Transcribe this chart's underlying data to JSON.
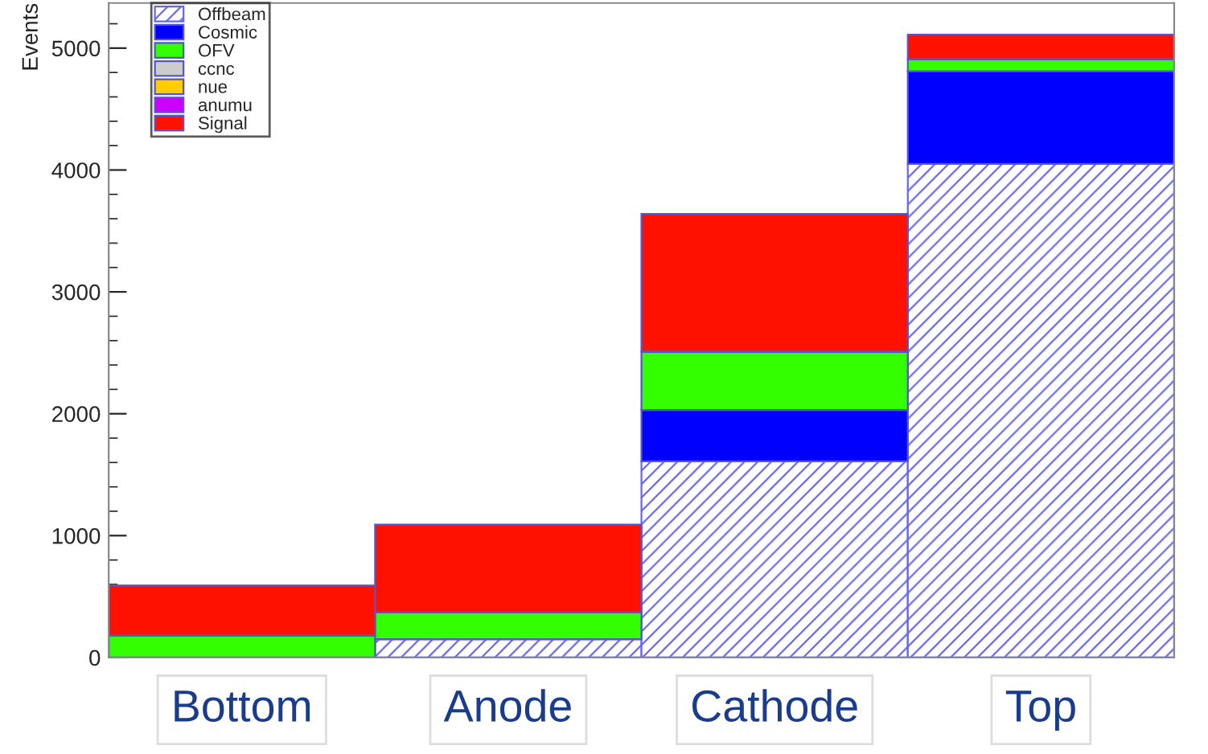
{
  "chart_data": {
    "type": "bar",
    "stacked": true,
    "ylabel": "Events",
    "categories": [
      "Bottom",
      "Anode",
      "Cathode",
      "Top"
    ],
    "series": [
      {
        "name": "Offbeam",
        "color": "#6666ee",
        "values": [
          0,
          150,
          1610,
          4050
        ]
      },
      {
        "name": "Cosmic",
        "color": "#0000ff",
        "values": [
          0,
          0,
          420,
          760
        ]
      },
      {
        "name": "OFV",
        "color": "#33ff00",
        "values": [
          180,
          220,
          480,
          100
        ]
      },
      {
        "name": "ccnc",
        "color": "#cccccc",
        "values": [
          0,
          0,
          0,
          0
        ]
      },
      {
        "name": "nue",
        "color": "#ffcc00",
        "values": [
          0,
          0,
          0,
          0
        ]
      },
      {
        "name": "anumu",
        "color": "#cc00ff",
        "values": [
          0,
          0,
          0,
          0
        ]
      },
      {
        "name": "Signal",
        "color": "#ff1100",
        "values": [
          410,
          720,
          1130,
          200
        ]
      }
    ],
    "ylim": [
      0,
      5370
    ],
    "yticks": [
      0,
      1000,
      2000,
      3000,
      4000,
      5000
    ],
    "legend": "top left",
    "grid": false
  }
}
